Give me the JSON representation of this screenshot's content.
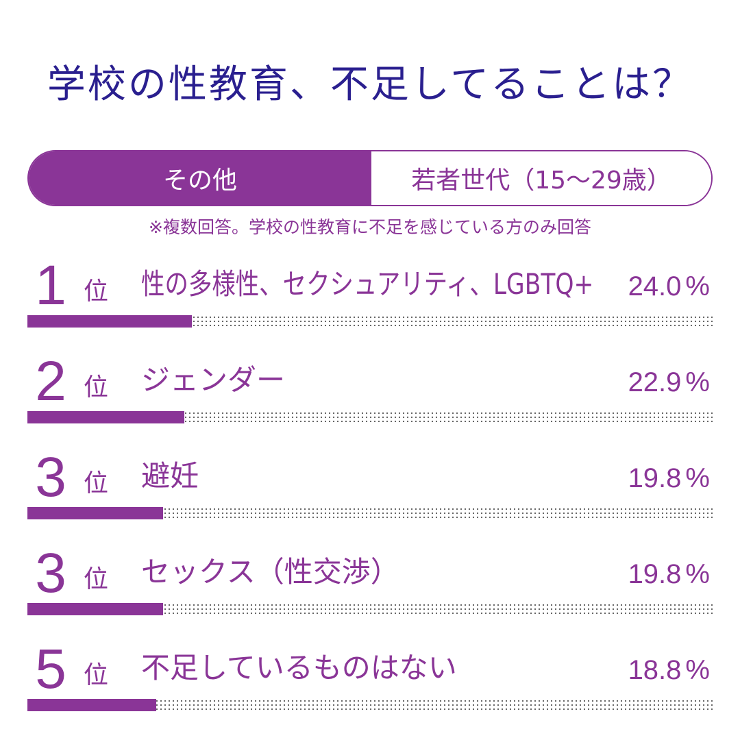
{
  "title": "学校の性教育、不足してることは？",
  "tabs": [
    {
      "label": "その他",
      "active": true
    },
    {
      "label": "若者世代（15～29歳）",
      "active": false
    }
  ],
  "note": "※複数回答。学校の性教育に不足を感じている方のみ回答",
  "colors": {
    "accent": "#8a3597",
    "title": "#2a1f8f",
    "track_dots": "#555555"
  },
  "chart_data": {
    "type": "bar",
    "orientation": "horizontal",
    "title": "学校の性教育、不足してることは？",
    "rank_suffix": "位",
    "unit": "%",
    "xlim": [
      0,
      100
    ],
    "items": [
      {
        "rank": "1",
        "label": "性の多様性、セクシュアリティ、LGBTQ+",
        "value": 24.0,
        "value_label": "24.0"
      },
      {
        "rank": "2",
        "label": "ジェンダー",
        "value": 22.9,
        "value_label": "22.9"
      },
      {
        "rank": "3",
        "label": "避妊",
        "value": 19.8,
        "value_label": "19.8"
      },
      {
        "rank": "3",
        "label": "セックス（性交渉）",
        "value": 19.8,
        "value_label": "19.8"
      },
      {
        "rank": "5",
        "label": "不足しているものはない",
        "value": 18.8,
        "value_label": "18.8"
      }
    ]
  }
}
